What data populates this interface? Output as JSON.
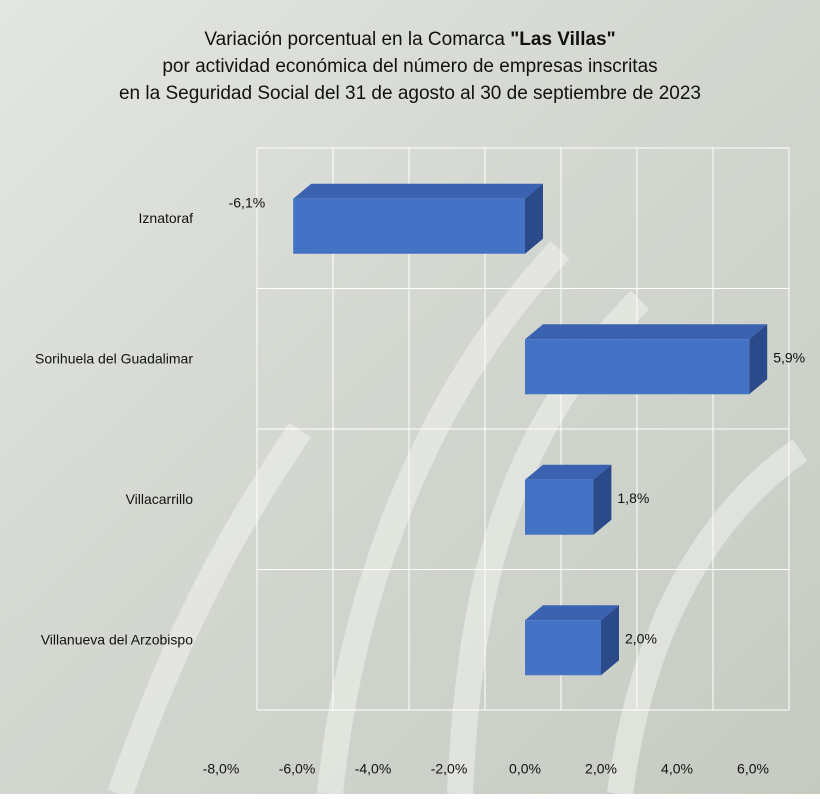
{
  "chart_data": {
    "type": "bar3d-horizontal",
    "title": [
      [
        {
          "text": "Variación porcentual en la Comarca ",
          "bold": false
        },
        {
          "text": "\"Las Villas\"",
          "bold": true
        }
      ],
      [
        {
          "text": "por actividad económica del número de empresas inscritas",
          "bold": false
        }
      ],
      [
        {
          "text": "en la Seguridad Social del 31 de agosto al 30 de septiembre de 2023",
          "bold": false
        }
      ]
    ],
    "categories": [
      "Iznatoraf",
      "Sorihuela del Guadalimar",
      "Villacarrillo",
      "Villanueva del Arzobispo"
    ],
    "values": [
      -6.1,
      5.9,
      1.8,
      2.0
    ],
    "value_labels": [
      "-6,1%",
      "5,9%",
      "1,8%",
      "2,0%"
    ],
    "color": "#4472c4",
    "xlim": [
      -8,
      6
    ],
    "xticks": [
      {
        "value": -8,
        "label": "-8,0%"
      },
      {
        "value": -6,
        "label": "-6,0%"
      },
      {
        "value": -4,
        "label": "-4,0%"
      },
      {
        "value": -2,
        "label": "-2,0%"
      },
      {
        "value": 0,
        "label": "0,0%"
      },
      {
        "value": 2,
        "label": "2,0%"
      },
      {
        "value": 4,
        "label": "4,0%"
      },
      {
        "value": 6,
        "label": "6,0%"
      }
    ],
    "grid": true
  }
}
